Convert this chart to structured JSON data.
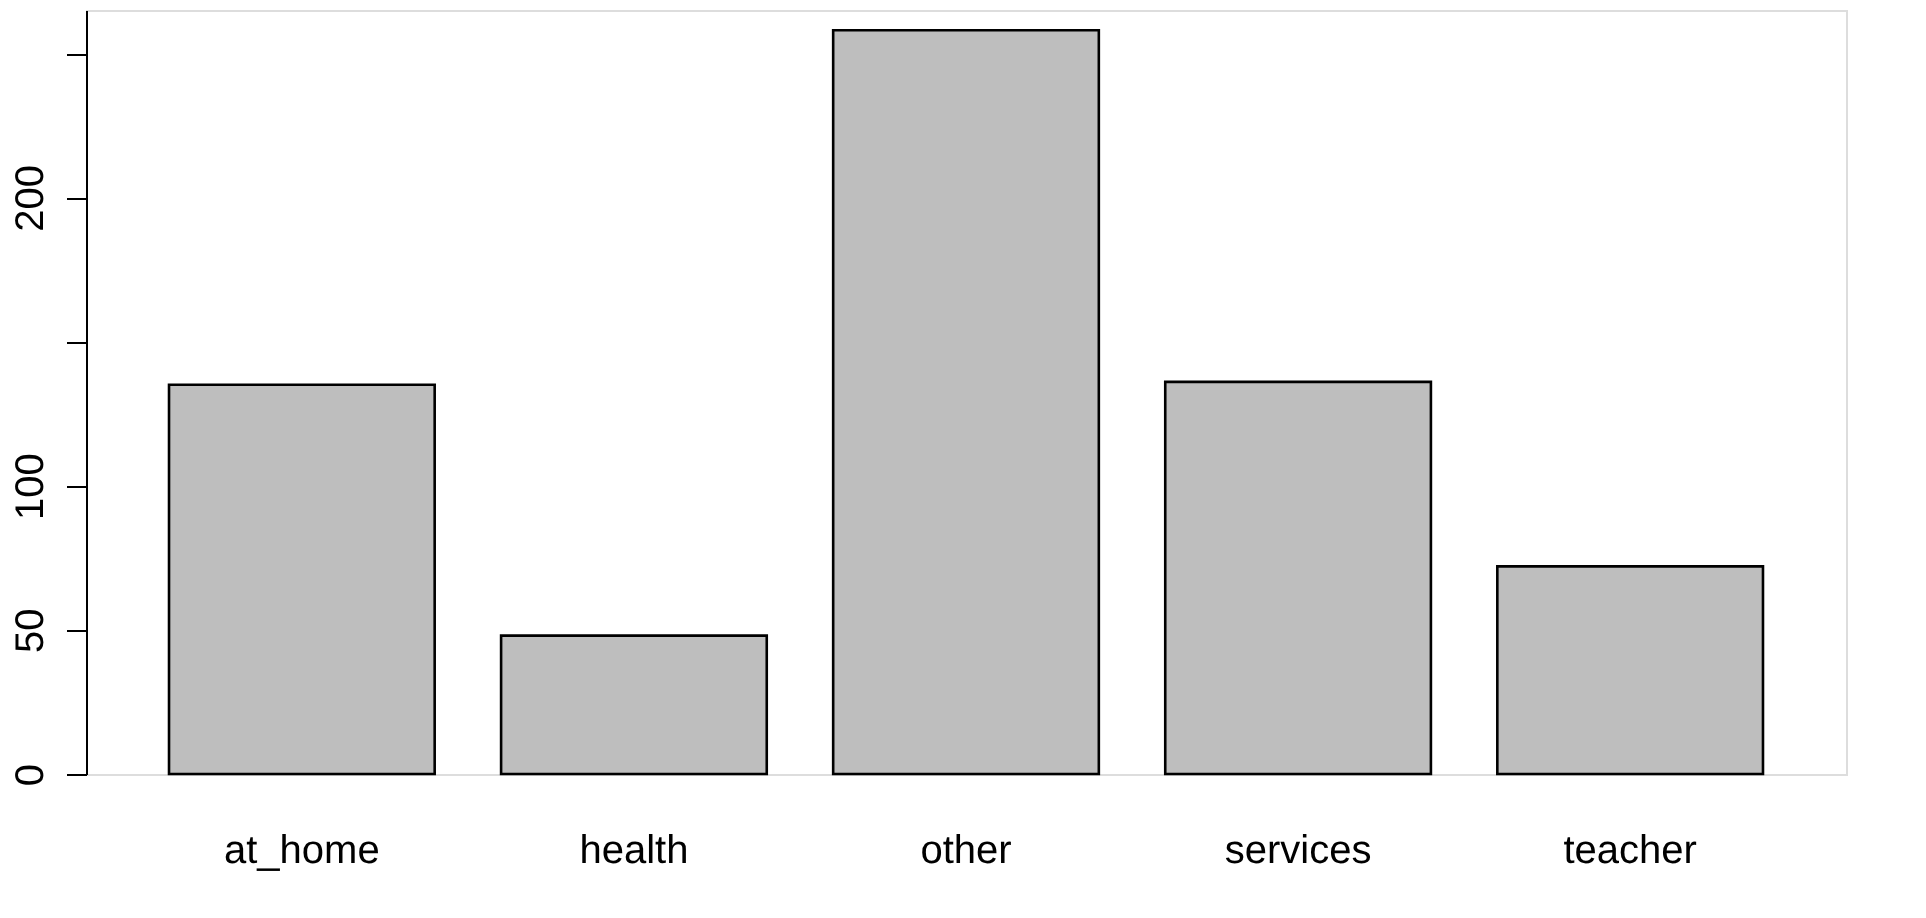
{
  "chart_data": {
    "type": "bar",
    "categories": [
      "at_home",
      "health",
      "other",
      "services",
      "teacher"
    ],
    "values": [
      135,
      48,
      258,
      136,
      72
    ],
    "color": "#bebebe",
    "ylim": [
      0,
      265
    ],
    "yticks": [
      0,
      50,
      100,
      {
        "value": 150,
        "label": null
      },
      200,
      {
        "value": 250,
        "label": null
      }
    ],
    "grid": false
  }
}
